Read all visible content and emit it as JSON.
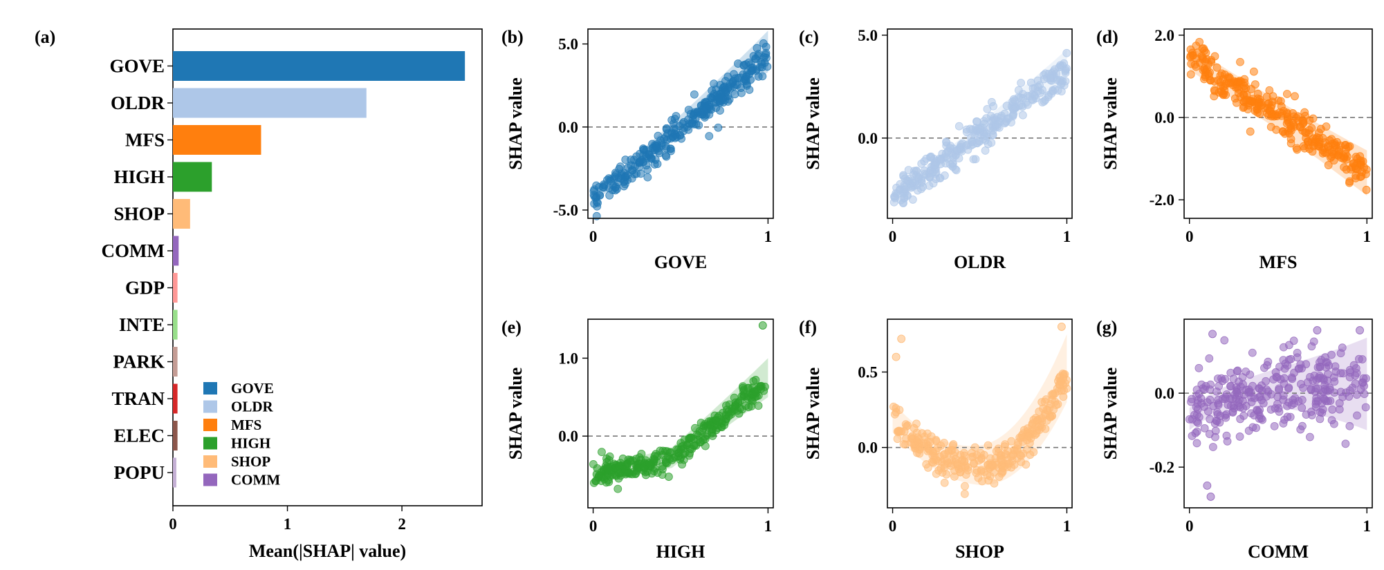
{
  "chart_data": [
    {
      "panel": "(a)",
      "type": "bar",
      "orientation": "horizontal",
      "categories": [
        "GOVE",
        "OLDR",
        "MFS",
        "HIGH",
        "SHOP",
        "COMM",
        "GDP",
        "INTE",
        "PARK",
        "TRAN",
        "ELEC",
        "POPU"
      ],
      "values": [
        2.55,
        1.69,
        0.77,
        0.34,
        0.15,
        0.05,
        0.04,
        0.04,
        0.04,
        0.04,
        0.04,
        0.03
      ],
      "colors": [
        "#1f77b4",
        "#aec7e8",
        "#ff7f0e",
        "#2ca02c",
        "#ffbb78",
        "#9467bd",
        "#ff9896",
        "#98df8a",
        "#c49c94",
        "#d62728",
        "#8c564b",
        "#c5b0d5"
      ],
      "xlabel": "Mean(|SHAP| value)",
      "xticks": [
        "0",
        "1",
        "2"
      ],
      "xlim": [
        0,
        2.7
      ],
      "legend": {
        "placement": "lower-center",
        "entries": [
          "GOVE",
          "OLDR",
          "MFS",
          "HIGH",
          "SHOP",
          "COMM"
        ]
      }
    },
    {
      "panel": "(b)",
      "type": "scatter",
      "feature": "GOVE",
      "color": "#1f77b4",
      "xlabel": "GOVE",
      "ylabel": "SHAP value",
      "xticks": [
        "0",
        "1"
      ],
      "yticks": [
        "5.0",
        "0.0",
        "-5.0"
      ],
      "ytick_values": [
        5,
        0,
        -5
      ],
      "xlim": [
        -0.03,
        1.03
      ],
      "ylim": [
        -5.5,
        5.9
      ],
      "trend": {
        "kind": "linear",
        "y_at_0": -4.3,
        "y_at_1": 4.2
      },
      "noise": 0.45,
      "band": {
        "y0_low": -4.6,
        "y0_high": -3.9,
        "y1_low": 3.3,
        "y1_high": 5.8
      },
      "zero_line": 0,
      "n_points": 300
    },
    {
      "panel": "(c)",
      "type": "scatter",
      "feature": "OLDR",
      "color": "#aec7e8",
      "xlabel": "OLDR",
      "ylabel": "SHAP value",
      "xticks": [
        "0",
        "1"
      ],
      "yticks": [
        "5.0",
        "0.0"
      ],
      "ytick_values": [
        5,
        0
      ],
      "xlim": [
        -0.03,
        1.03
      ],
      "ylim": [
        -3.9,
        5.3
      ],
      "trend": {
        "kind": "linear",
        "y_at_0": -2.9,
        "y_at_1": 3.3
      },
      "noise": 0.4,
      "band": {
        "y0_low": -3.2,
        "y0_high": -2.6,
        "y1_low": 2.7,
        "y1_high": 4.3
      },
      "zero_line": 0,
      "n_points": 300
    },
    {
      "panel": "(d)",
      "type": "scatter",
      "feature": "MFS",
      "color": "#ff7f0e",
      "xlabel": "MFS",
      "ylabel": "SHAP value",
      "xticks": [
        "0",
        "1"
      ],
      "yticks": [
        "2.0",
        "0.0",
        "-2.0"
      ],
      "ytick_values": [
        2,
        0,
        -2
      ],
      "xlim": [
        -0.03,
        1.03
      ],
      "ylim": [
        -2.45,
        2.15
      ],
      "trend": {
        "kind": "linear",
        "y_at_0": 1.45,
        "y_at_1": -1.3
      },
      "noise": 0.22,
      "band": {
        "y0_low": 1.15,
        "y0_high": 1.75,
        "y1_low": -1.9,
        "y1_high": -0.8
      },
      "zero_line": 0,
      "n_points": 300
    },
    {
      "panel": "(e)",
      "type": "scatter",
      "feature": "HIGH",
      "color": "#2ca02c",
      "xlabel": "HIGH",
      "ylabel": "SHAP value",
      "xticks": [
        "0",
        "1"
      ],
      "yticks": [
        "1.0",
        "0.0"
      ],
      "ytick_values": [
        1,
        0
      ],
      "xlim": [
        -0.03,
        1.03
      ],
      "ylim": [
        -0.92,
        1.5
      ],
      "trend": {
        "kind": "piecewise",
        "points": [
          [
            0,
            -0.5
          ],
          [
            0.45,
            -0.3
          ],
          [
            1,
            0.7
          ]
        ]
      },
      "noise": 0.08,
      "band": {
        "y0_low": -0.6,
        "y0_high": -0.4,
        "y1_low": 0.5,
        "y1_high": 1.0
      },
      "zero_line": 0,
      "n_points": 300,
      "outliers": [
        [
          0.97,
          1.42
        ]
      ]
    },
    {
      "panel": "(f)",
      "type": "scatter",
      "feature": "SHOP",
      "color": "#ffbb78",
      "xlabel": "SHOP",
      "ylabel": "SHAP value",
      "xticks": [
        "0",
        "1"
      ],
      "yticks": [
        "0.5",
        "0.0"
      ],
      "ytick_values": [
        0.5,
        0
      ],
      "xlim": [
        -0.03,
        1.03
      ],
      "ylim": [
        -0.4,
        0.85
      ],
      "trend": {
        "kind": "quadratic",
        "vertex_x": 0.5,
        "vertex_y": -0.13,
        "y_at_0": 0.2,
        "y_at_1": 0.5
      },
      "noise": 0.06,
      "band": {
        "y0_low": 0.1,
        "y0_high": 0.3,
        "y1_low": 0.3,
        "y1_high": 0.75
      },
      "zero_line": 0,
      "n_points": 300,
      "outliers": [
        [
          0.05,
          0.72
        ],
        [
          0.02,
          0.6
        ],
        [
          0.97,
          0.8
        ]
      ]
    },
    {
      "panel": "(g)",
      "type": "scatter",
      "feature": "COMM",
      "color": "#9467bd",
      "xlabel": "COMM",
      "ylabel": "SHAP value",
      "xticks": [
        "0",
        "1"
      ],
      "yticks": [
        "0.0",
        "-0.2"
      ],
      "ytick_values": [
        0,
        -0.2
      ],
      "xlim": [
        -0.03,
        1.03
      ],
      "ylim": [
        -0.31,
        0.2
      ],
      "trend": {
        "kind": "saturating",
        "y_at_0": -0.07,
        "y_at_1": 0.025
      },
      "noise": 0.05,
      "band": {
        "y0_low": -0.1,
        "y0_high": -0.04,
        "y1_low": -0.1,
        "y1_high": 0.15
      },
      "zero_line": 0,
      "n_points": 300,
      "outliers": [
        [
          0.13,
          0.16
        ],
        [
          0.12,
          -0.28
        ],
        [
          0.1,
          -0.25
        ],
        [
          0.72,
          0.17
        ],
        [
          0.96,
          0.17
        ]
      ]
    }
  ]
}
